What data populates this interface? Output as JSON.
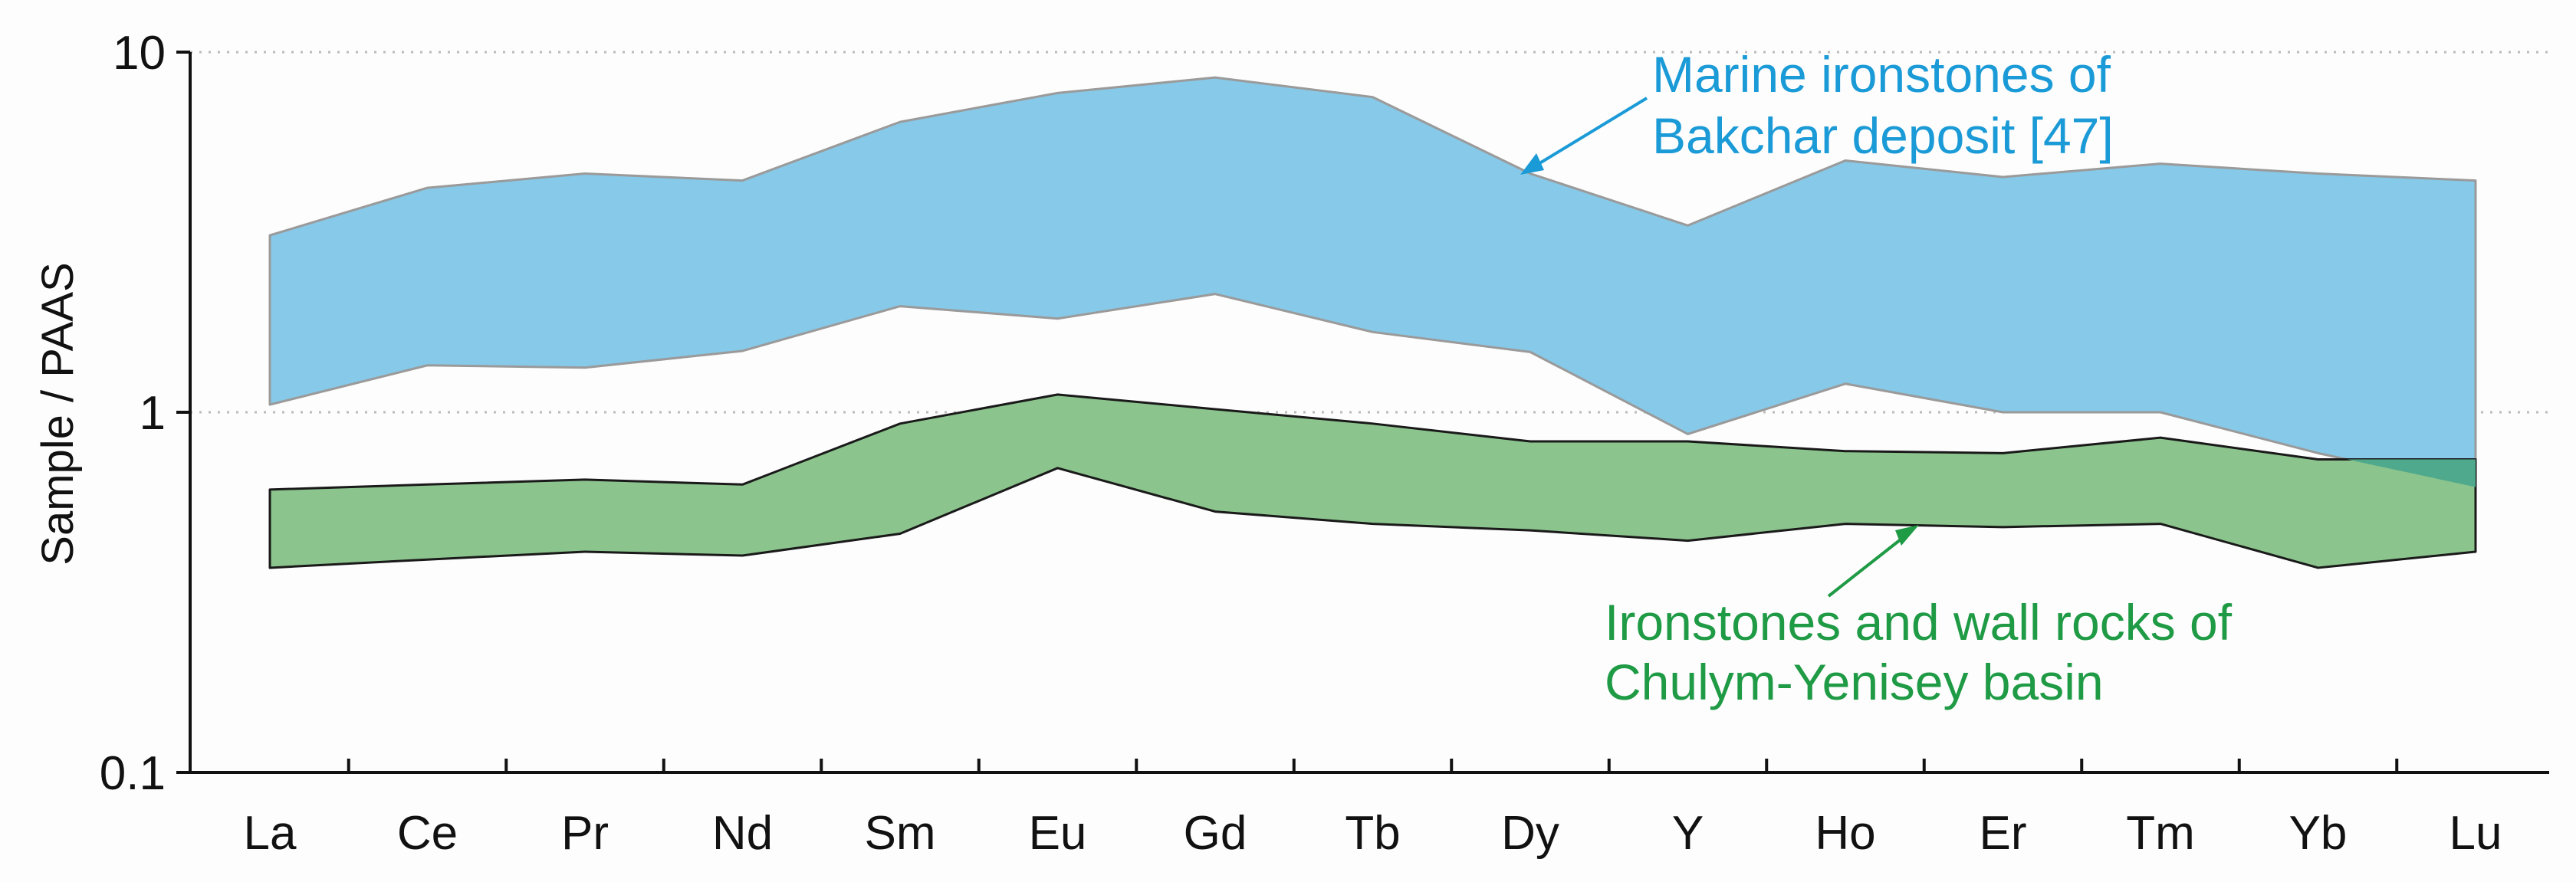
{
  "chart_data": {
    "type": "area",
    "ylabel": "Sample / PAAS",
    "yscale": "log",
    "ylim": [
      0.1,
      10
    ],
    "yticks": [
      {
        "value": 0.1,
        "label": "0.1"
      },
      {
        "value": 1,
        "label": "1"
      },
      {
        "value": 10,
        "label": "10"
      }
    ],
    "gridlines": [
      1,
      10
    ],
    "categories": [
      "La",
      "Ce",
      "Pr",
      "Nd",
      "Sm",
      "Eu",
      "Gd",
      "Tb",
      "Dy",
      "Y",
      "Ho",
      "Er",
      "Tm",
      "Yb",
      "Lu"
    ],
    "series": [
      {
        "name": "Marine ironstones of Bakchar deposit [47]",
        "label_lines": [
          "Marine ironstones of",
          "Bakchar deposit [47]"
        ],
        "color": "#87c9e8",
        "upper": [
          3.1,
          4.2,
          4.6,
          4.4,
          6.4,
          7.7,
          8.5,
          7.5,
          4.6,
          3.3,
          5.0,
          4.5,
          4.9,
          4.6,
          4.4
        ],
        "lower": [
          1.05,
          1.35,
          1.33,
          1.48,
          1.97,
          1.82,
          2.13,
          1.67,
          1.47,
          0.87,
          1.2,
          1.0,
          1.0,
          0.77,
          0.62
        ]
      },
      {
        "name": "Ironstones and wall rocks of Chulym-Yenisey basin",
        "label_lines": [
          "Ironstones and wall rocks of",
          "Chulym-Yenisey basin"
        ],
        "color": "#8cc48d",
        "upper": [
          0.61,
          0.63,
          0.65,
          0.63,
          0.93,
          1.12,
          1.02,
          0.93,
          0.83,
          0.83,
          0.78,
          0.77,
          0.85,
          0.74,
          0.74
        ],
        "lower": [
          0.37,
          0.39,
          0.41,
          0.4,
          0.46,
          0.7,
          0.53,
          0.49,
          0.47,
          0.44,
          0.49,
          0.48,
          0.49,
          0.37,
          0.41
        ]
      }
    ],
    "overlap_color": "#4fa98c",
    "colors": {
      "marine_label": "#1a9ad6",
      "basin_label": "#1f9a45",
      "marine_outline": "#9a9a9a",
      "basin_outline": "#1a1a1a",
      "grid": "#bbbbbb",
      "axis": "#111111"
    },
    "grid": "dotted horizontal"
  }
}
